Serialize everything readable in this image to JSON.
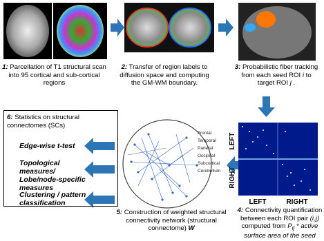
{
  "steps": [
    {
      "number": "1:",
      "parts": [
        "Parcellation of T1 structural scan into 95 cortical and sub-cortical regions"
      ]
    },
    {
      "number": "2:",
      "parts": [
        "Transfer of region labels to diffusion space and computing the GM-WM boundary."
      ]
    },
    {
      "number": "3:",
      "parts": [
        "Probabilistic fiber tracking from each seed ROI ",
        "i",
        " to target ROI ",
        "j",
        " ."
      ]
    },
    {
      "number": "4:",
      "parts": [
        "Connectivity quantification between each ROI pair ",
        "(i,j)",
        " computed from ",
        "P",
        "ij",
        " * active surface area of the seed"
      ]
    },
    {
      "number": "5:",
      "parts": [
        "Construction of  weighted structural connectivity network (structural connectome) ",
        "W"
      ]
    },
    {
      "number": "6:",
      "parts": [
        "Statistics on structural connectomes (SCs)"
      ]
    }
  ],
  "statistics": [
    "Edge-wise t-test",
    "Topological measures/ Lobe/node-specific measures",
    "Clustering / pattern classification"
  ],
  "legend": [
    "Frontal",
    "Temporal",
    "Parietal",
    "Occipital",
    "Subcortical",
    "Cerebellum"
  ],
  "matrix_labels": {
    "rows": [
      "LEFT",
      "RIGHT"
    ],
    "columns": [
      "LEFT",
      "RIGHT"
    ]
  }
}
